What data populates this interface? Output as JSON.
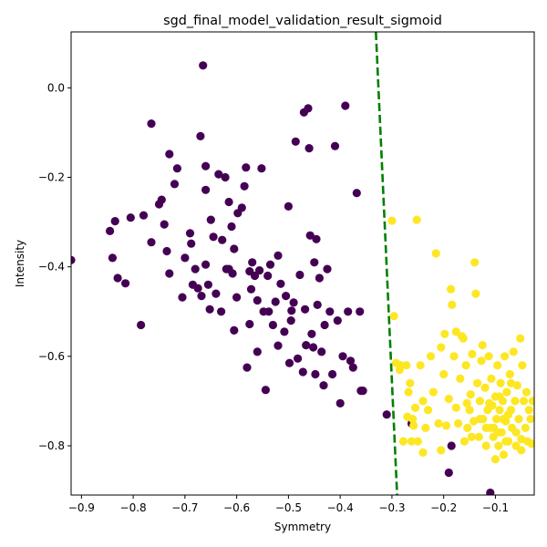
{
  "chart_data": {
    "type": "scatter",
    "title": "sgd_final_model_validation_result_sigmoid",
    "xlabel": "Symmetry",
    "ylabel": "Intensity",
    "xlim": [
      -0.92,
      -0.025
    ],
    "ylim": [
      -0.91,
      0.125
    ],
    "xticks": [
      -0.9,
      -0.8,
      -0.7,
      -0.6,
      -0.5,
      -0.4,
      -0.3,
      -0.2,
      -0.1
    ],
    "xtick_labels": [
      "−0.9",
      "−0.8",
      "−0.7",
      "−0.6",
      "−0.5",
      "−0.4",
      "−0.3",
      "−0.2",
      "−0.1"
    ],
    "yticks": [
      0.0,
      -0.2,
      -0.4,
      -0.6,
      -0.8
    ],
    "ytick_labels": [
      "0.0",
      "−0.2",
      "−0.4",
      "−0.6",
      "−0.8"
    ],
    "grid": false,
    "colors": {
      "class_a": "#440154",
      "class_b": "#fde725",
      "boundary": "#008000"
    },
    "boundary": {
      "style": "dashed",
      "points": [
        [
          -0.331,
          0.125
        ],
        [
          -0.29,
          -0.91
        ]
      ]
    },
    "series": [
      {
        "values_purple": [
          [
            -0.92,
            -0.385
          ],
          [
            -0.845,
            -0.32
          ],
          [
            -0.84,
            -0.38
          ],
          [
            -0.835,
            -0.298
          ],
          [
            -0.83,
            -0.425
          ],
          [
            -0.815,
            -0.437
          ],
          [
            -0.805,
            -0.29
          ],
          [
            -0.785,
            -0.53
          ],
          [
            -0.78,
            -0.285
          ],
          [
            -0.765,
            -0.08
          ],
          [
            -0.765,
            -0.345
          ],
          [
            -0.75,
            -0.26
          ],
          [
            -0.745,
            -0.25
          ],
          [
            -0.74,
            -0.305
          ],
          [
            -0.735,
            -0.365
          ],
          [
            -0.73,
            -0.148
          ],
          [
            -0.73,
            -0.415
          ],
          [
            -0.72,
            -0.215
          ],
          [
            -0.715,
            -0.18
          ],
          [
            -0.705,
            -0.468
          ],
          [
            -0.7,
            -0.38
          ],
          [
            -0.69,
            -0.325
          ],
          [
            -0.688,
            -0.348
          ],
          [
            -0.685,
            -0.44
          ],
          [
            -0.68,
            -0.405
          ],
          [
            -0.675,
            -0.448
          ],
          [
            -0.67,
            -0.108
          ],
          [
            -0.668,
            -0.465
          ],
          [
            -0.665,
            0.05
          ],
          [
            -0.66,
            -0.175
          ],
          [
            -0.66,
            -0.228
          ],
          [
            -0.655,
            -0.44
          ],
          [
            -0.652,
            -0.495
          ],
          [
            -0.65,
            -0.295
          ],
          [
            -0.645,
            -0.333
          ],
          [
            -0.64,
            -0.46
          ],
          [
            -0.635,
            -0.193
          ],
          [
            -0.63,
            -0.5
          ],
          [
            -0.628,
            -0.34
          ],
          [
            -0.622,
            -0.2
          ],
          [
            -0.615,
            -0.405
          ],
          [
            -0.61,
            -0.31
          ],
          [
            -0.608,
            -0.415
          ],
          [
            -0.605,
            -0.542
          ],
          [
            -0.6,
            -0.468
          ],
          [
            -0.598,
            -0.28
          ],
          [
            -0.59,
            -0.268
          ],
          [
            -0.585,
            -0.22
          ],
          [
            -0.582,
            -0.178
          ],
          [
            -0.58,
            -0.625
          ],
          [
            -0.575,
            -0.528
          ],
          [
            -0.572,
            -0.45
          ],
          [
            -0.57,
            -0.39
          ],
          [
            -0.565,
            -0.42
          ],
          [
            -0.56,
            -0.475
          ],
          [
            -0.556,
            -0.408
          ],
          [
            -0.552,
            -0.18
          ],
          [
            -0.548,
            -0.5
          ],
          [
            -0.544,
            -0.675
          ],
          [
            -0.54,
            -0.42
          ],
          [
            -0.535,
            -0.395
          ],
          [
            -0.53,
            -0.53
          ],
          [
            -0.525,
            -0.478
          ],
          [
            -0.52,
            -0.576
          ],
          [
            -0.515,
            -0.438
          ],
          [
            -0.508,
            -0.545
          ],
          [
            -0.505,
            -0.465
          ],
          [
            -0.5,
            -0.265
          ],
          [
            -0.498,
            -0.615
          ],
          [
            -0.494,
            -0.498
          ],
          [
            -0.49,
            -0.48
          ],
          [
            -0.486,
            -0.12
          ],
          [
            -0.482,
            -0.605
          ],
          [
            -0.478,
            -0.418
          ],
          [
            -0.472,
            -0.635
          ],
          [
            -0.47,
            -0.055
          ],
          [
            -0.468,
            -0.495
          ],
          [
            -0.466,
            -0.575
          ],
          [
            -0.462,
            -0.046
          ],
          [
            -0.46,
            -0.135
          ],
          [
            -0.458,
            -0.33
          ],
          [
            -0.455,
            -0.55
          ],
          [
            -0.452,
            -0.58
          ],
          [
            -0.45,
            -0.39
          ],
          [
            -0.448,
            -0.64
          ],
          [
            -0.446,
            -0.338
          ],
          [
            -0.444,
            -0.485
          ],
          [
            -0.44,
            -0.425
          ],
          [
            -0.436,
            -0.59
          ],
          [
            -0.432,
            -0.665
          ],
          [
            -0.43,
            -0.53
          ],
          [
            -0.425,
            -0.405
          ],
          [
            -0.42,
            -0.5
          ],
          [
            -0.415,
            -0.64
          ],
          [
            -0.41,
            -0.13
          ],
          [
            -0.405,
            -0.52
          ],
          [
            -0.4,
            -0.705
          ],
          [
            -0.395,
            -0.6
          ],
          [
            -0.39,
            -0.04
          ],
          [
            -0.385,
            -0.5
          ],
          [
            -0.38,
            -0.61
          ],
          [
            -0.375,
            -0.625
          ],
          [
            -0.368,
            -0.235
          ],
          [
            -0.362,
            -0.5
          ],
          [
            -0.36,
            -0.677
          ],
          [
            -0.356,
            -0.677
          ],
          [
            -0.31,
            -0.73
          ],
          [
            -0.262,
            -0.75
          ],
          [
            -0.185,
            -0.8
          ],
          [
            -0.19,
            -0.86
          ],
          [
            -0.11,
            -0.905
          ],
          [
            -0.605,
            -0.36
          ],
          [
            -0.52,
            -0.375
          ],
          [
            -0.615,
            -0.255
          ],
          [
            -0.66,
            -0.395
          ],
          [
            -0.495,
            -0.52
          ],
          [
            -0.538,
            -0.5
          ],
          [
            -0.62,
            -0.405
          ],
          [
            -0.575,
            -0.41
          ],
          [
            -0.56,
            -0.59
          ]
        ],
        "values_yellow": [
          [
            -0.3,
            -0.297
          ],
          [
            -0.296,
            -0.51
          ],
          [
            -0.292,
            -0.615
          ],
          [
            -0.285,
            -0.63
          ],
          [
            -0.278,
            -0.79
          ],
          [
            -0.272,
            -0.62
          ],
          [
            -0.27,
            -0.735
          ],
          [
            -0.268,
            -0.68
          ],
          [
            -0.265,
            -0.66
          ],
          [
            -0.262,
            -0.79
          ],
          [
            -0.258,
            -0.755
          ],
          [
            -0.255,
            -0.715
          ],
          [
            -0.252,
            -0.295
          ],
          [
            -0.25,
            -0.79
          ],
          [
            -0.245,
            -0.62
          ],
          [
            -0.24,
            -0.7
          ],
          [
            -0.235,
            -0.76
          ],
          [
            -0.23,
            -0.72
          ],
          [
            -0.225,
            -0.6
          ],
          [
            -0.22,
            -0.68
          ],
          [
            -0.215,
            -0.37
          ],
          [
            -0.21,
            -0.75
          ],
          [
            -0.205,
            -0.81
          ],
          [
            -0.2,
            -0.64
          ],
          [
            -0.198,
            -0.55
          ],
          [
            -0.195,
            -0.755
          ],
          [
            -0.19,
            -0.695
          ],
          [
            -0.186,
            -0.45
          ],
          [
            -0.184,
            -0.485
          ],
          [
            -0.18,
            -0.6
          ],
          [
            -0.176,
            -0.715
          ],
          [
            -0.172,
            -0.75
          ],
          [
            -0.168,
            -0.65
          ],
          [
            -0.165,
            -0.555
          ],
          [
            -0.162,
            -0.56
          ],
          [
            -0.16,
            -0.79
          ],
          [
            -0.157,
            -0.62
          ],
          [
            -0.154,
            -0.76
          ],
          [
            -0.15,
            -0.72
          ],
          [
            -0.148,
            -0.685
          ],
          [
            -0.145,
            -0.595
          ],
          [
            -0.142,
            -0.745
          ],
          [
            -0.14,
            -0.39
          ],
          [
            -0.138,
            -0.46
          ],
          [
            -0.135,
            -0.66
          ],
          [
            -0.132,
            -0.78
          ],
          [
            -0.13,
            -0.7
          ],
          [
            -0.127,
            -0.61
          ],
          [
            -0.124,
            -0.74
          ],
          [
            -0.12,
            -0.67
          ],
          [
            -0.118,
            -0.8
          ],
          [
            -0.115,
            -0.72
          ],
          [
            -0.113,
            -0.6
          ],
          [
            -0.11,
            -0.76
          ],
          [
            -0.108,
            -0.65
          ],
          [
            -0.106,
            -0.71
          ],
          [
            -0.104,
            -0.78
          ],
          [
            -0.1,
            -0.69
          ],
          [
            -0.098,
            -0.74
          ],
          [
            -0.096,
            -0.62
          ],
          [
            -0.094,
            -0.8
          ],
          [
            -0.092,
            -0.72
          ],
          [
            -0.09,
            -0.66
          ],
          [
            -0.088,
            -0.77
          ],
          [
            -0.086,
            -0.7
          ],
          [
            -0.084,
            -0.82
          ],
          [
            -0.082,
            -0.6
          ],
          [
            -0.08,
            -0.745
          ],
          [
            -0.078,
            -0.68
          ],
          [
            -0.075,
            -0.79
          ],
          [
            -0.072,
            -0.64
          ],
          [
            -0.07,
            -0.72
          ],
          [
            -0.068,
            -0.76
          ],
          [
            -0.065,
            -0.59
          ],
          [
            -0.062,
            -0.7
          ],
          [
            -0.06,
            -0.8
          ],
          [
            -0.058,
            -0.665
          ],
          [
            -0.055,
            -0.74
          ],
          [
            -0.052,
            -0.56
          ],
          [
            -0.05,
            -0.785
          ],
          [
            -0.048,
            -0.62
          ],
          [
            -0.045,
            -0.7
          ],
          [
            -0.042,
            -0.76
          ],
          [
            -0.04,
            -0.68
          ],
          [
            -0.038,
            -0.79
          ],
          [
            -0.035,
            -0.72
          ],
          [
            -0.032,
            -0.74
          ],
          [
            -0.03,
            -0.795
          ],
          [
            -0.028,
            -0.7
          ],
          [
            -0.125,
            -0.575
          ],
          [
            -0.095,
            -0.77
          ],
          [
            -0.112,
            -0.705
          ],
          [
            -0.075,
            -0.73
          ],
          [
            -0.155,
            -0.705
          ],
          [
            -0.08,
            -0.79
          ],
          [
            -0.1,
            -0.83
          ],
          [
            -0.06,
            -0.77
          ],
          [
            -0.13,
            -0.74
          ],
          [
            -0.146,
            -0.78
          ],
          [
            -0.118,
            -0.76
          ],
          [
            -0.05,
            -0.81
          ],
          [
            -0.085,
            -0.74
          ],
          [
            -0.205,
            -0.58
          ],
          [
            -0.26,
            -0.74
          ],
          [
            -0.24,
            -0.815
          ],
          [
            -0.103,
            -0.76
          ],
          [
            -0.07,
            -0.66
          ],
          [
            -0.092,
            -0.69
          ],
          [
            -0.283,
            -0.62
          ],
          [
            -0.176,
            -0.545
          ]
        ]
      }
    ]
  }
}
